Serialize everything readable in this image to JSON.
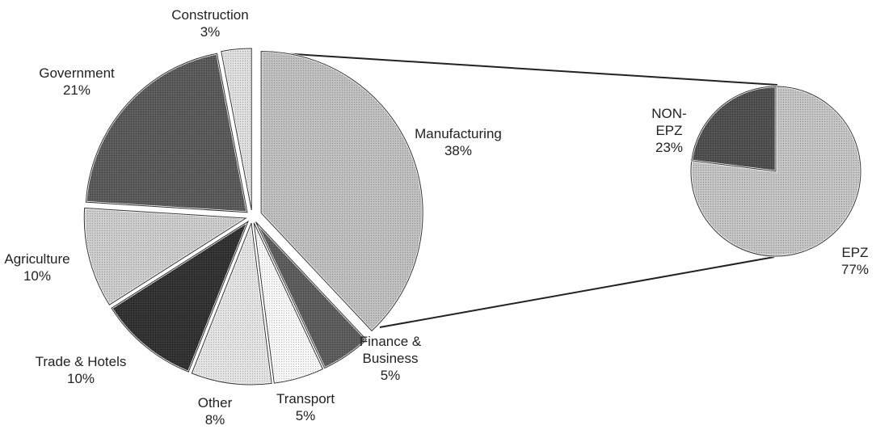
{
  "chart_data": [
    {
      "type": "pie",
      "categories": [
        "Manufacturing",
        "Finance & Business",
        "Transport",
        "Other",
        "Trade & Hotels",
        "Agriculture",
        "Government",
        "Construction"
      ],
      "values": [
        38,
        5,
        5,
        8,
        10,
        10,
        21,
        3
      ],
      "value_labels": [
        "38%",
        "5%",
        "5%",
        "8%",
        "10%",
        "10%",
        "21%",
        "3%"
      ],
      "colors": [
        "#bdbdbd",
        "#5a5a5a",
        "#f6f6f6",
        "#e2e2e2",
        "#2e2e2e",
        "#cbcbcb",
        "#575757",
        "#dddddd"
      ]
    },
    {
      "type": "pie",
      "categories": [
        "EPZ",
        "NON-EPZ"
      ],
      "values": [
        77,
        23
      ],
      "value_labels": [
        "77%",
        "23%"
      ],
      "colors": [
        "#c2c2c2",
        "#4c4c4c"
      ]
    }
  ]
}
